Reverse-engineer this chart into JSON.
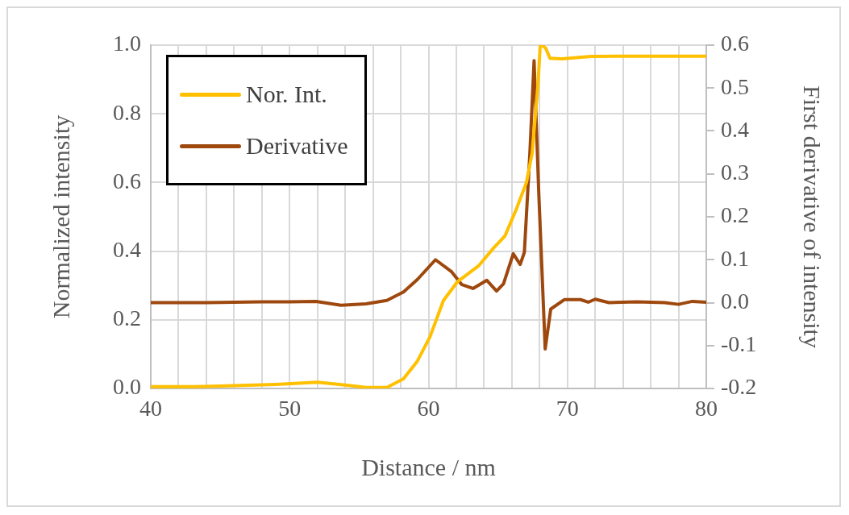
{
  "chart_data": {
    "type": "line",
    "xlabel": "Distance / nm",
    "ylabel": "Normalized intensity",
    "y2label": "First derivative of intensity",
    "xlim": [
      40,
      80
    ],
    "xticks": [
      40,
      {
        "value": 42,
        "label": null
      },
      {
        "value": 44,
        "label": null
      },
      {
        "value": 46,
        "label": null
      },
      {
        "value": 48,
        "label": null
      },
      50,
      {
        "value": 52,
        "label": null
      },
      {
        "value": 54,
        "label": null
      },
      {
        "value": 56,
        "label": null
      },
      {
        "value": 58,
        "label": null
      },
      60,
      {
        "value": 62,
        "label": null
      },
      {
        "value": 64,
        "label": null
      },
      {
        "value": 66,
        "label": null
      },
      {
        "value": 68,
        "label": null
      },
      70,
      {
        "value": 72,
        "label": null
      },
      {
        "value": 74,
        "label": null
      },
      {
        "value": 76,
        "label": null
      },
      {
        "value": 78,
        "label": null
      },
      80
    ],
    "ylim": [
      0,
      1
    ],
    "yticks": [
      {
        "value": 0,
        "label": "0.0"
      },
      0.2,
      0.4,
      0.6,
      0.8,
      {
        "value": 1,
        "label": "1.0"
      }
    ],
    "y2lim": [
      -0.2,
      0.6
    ],
    "y2ticks": [
      -0.2,
      -0.1,
      {
        "value": 0,
        "label": "0.0"
      },
      0.1,
      0.2,
      0.3,
      0.4,
      0.5,
      0.6
    ],
    "grid": true,
    "legend": "top left",
    "marker": "none",
    "line_style": "solid",
    "series": [
      {
        "name": "Nor. Int.",
        "color": "#ffc000",
        "x": [
          40,
          43,
          46,
          49,
          52,
          54,
          55.5,
          57,
          58.2,
          59.2,
          60.1,
          61.07,
          62.06,
          63.6,
          64.7,
          65.5,
          66.3,
          67.05,
          67.46,
          67.87,
          68.04,
          68.2,
          68.45,
          68.74,
          69.6,
          71.7,
          75,
          80
        ],
        "values": [
          0.005,
          0.005,
          0.008,
          0.012,
          0.018,
          0.01,
          0.003,
          0.003,
          0.028,
          0.08,
          0.15,
          0.256,
          0.31,
          0.357,
          0.41,
          0.444,
          0.52,
          0.6,
          0.685,
          0.88,
          0.998,
          1.0,
          0.99,
          0.962,
          0.96,
          0.967,
          0.968,
          0.968
        ]
      },
      {
        "name": "Derivative",
        "color": "#9e480e",
        "axis": "y2",
        "x": [
          40,
          44,
          48,
          50,
          51.9,
          53.7,
          55.5,
          57,
          58.2,
          59.2,
          60.5,
          61.66,
          62.4,
          63.2,
          64.2,
          64.9,
          65.4,
          66.1,
          66.6,
          66.9,
          67.3,
          67.6,
          67.94,
          68.4,
          68.8,
          69.77,
          70.94,
          71.5,
          72,
          73,
          75,
          77,
          78,
          79,
          80
        ],
        "values": [
          0,
          0,
          0.002,
          0.002,
          0.003,
          -0.006,
          -0.003,
          0.005,
          0.025,
          0.054,
          0.1,
          0.072,
          0.042,
          0.033,
          0.052,
          0.027,
          0.044,
          0.114,
          0.089,
          0.117,
          0.35,
          0.564,
          0.254,
          -0.108,
          -0.015,
          0.007,
          0.007,
          0.001,
          0.008,
          0.0,
          0.002,
          0.0,
          -0.004,
          0.003,
          0.001
        ]
      }
    ]
  }
}
